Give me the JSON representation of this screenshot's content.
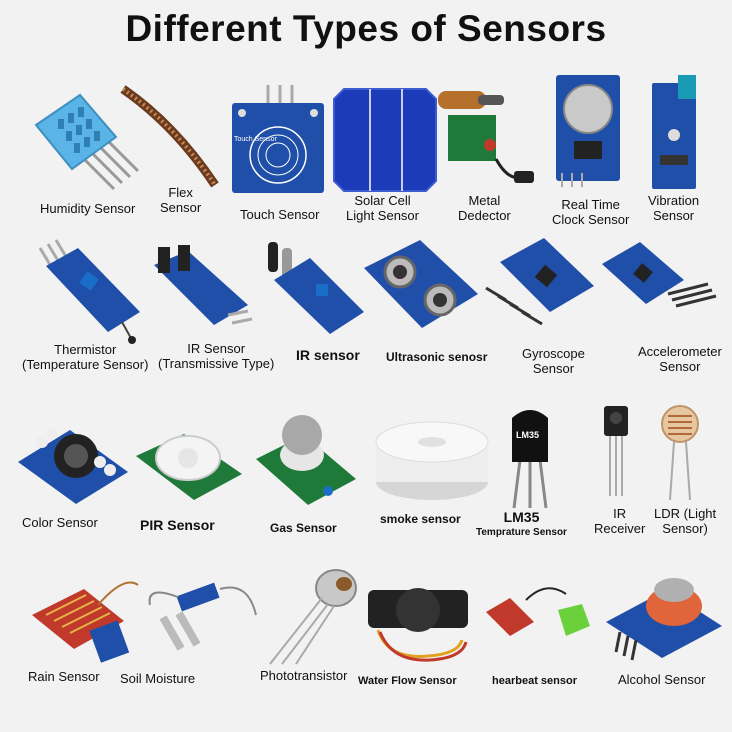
{
  "title": "Different Types of Sensors",
  "colors": {
    "pcb_blue": "#1f4fa8",
    "dht_blue": "#5ab4e6",
    "pcb_red": "#c0392b",
    "pcb_green": "#1f7a3a"
  },
  "sensors": [
    {
      "line1": "Humidity Sensor",
      "line2": "",
      "icon": "humidity-sensor-icon"
    },
    {
      "line1": "Flex",
      "line2": "Sensor",
      "icon": "flex-sensor-icon"
    },
    {
      "line1": "Touch Sensor",
      "line2": "",
      "icon": "touch-sensor-icon",
      "board_text": "Touch Sensor"
    },
    {
      "line1": "Solar Cell",
      "line2": "Light Sensor",
      "icon": "solar-cell-icon"
    },
    {
      "line1": "Metal",
      "line2": "Dedector",
      "icon": "metal-detector-icon"
    },
    {
      "line1": "Real Time",
      "line2": "Clock Sensor",
      "icon": "rtc-sensor-icon"
    },
    {
      "line1": "Vibration",
      "line2": "Sensor",
      "icon": "vibration-sensor-icon"
    },
    {
      "line1": "Thermistor",
      "line2": "(Temperature Sensor)",
      "icon": "thermistor-icon"
    },
    {
      "line1": "IR Sensor",
      "line2": "(Transmissive Type)",
      "icon": "ir-transmissive-icon"
    },
    {
      "line1": "IR sensor",
      "line2": "",
      "icon": "ir-sensor-icon"
    },
    {
      "line1": "Ultrasonic senosr",
      "line2": "",
      "icon": "ultrasonic-sensor-icon"
    },
    {
      "line1": "Gyroscope",
      "line2": "Sensor",
      "icon": "gyroscope-icon"
    },
    {
      "line1": "Accelerometer",
      "line2": "Sensor",
      "icon": "accelerometer-icon"
    },
    {
      "line1": "Color Sensor",
      "line2": "",
      "icon": "color-sensor-icon"
    },
    {
      "line1": "PIR Sensor",
      "line2": "",
      "icon": "pir-sensor-icon"
    },
    {
      "line1": "Gas Sensor",
      "line2": "",
      "icon": "gas-sensor-icon"
    },
    {
      "line1": "smoke sensor",
      "line2": "",
      "icon": "smoke-sensor-icon"
    },
    {
      "line1": "LM35",
      "line2": "Temprature Sensor",
      "icon": "lm35-icon",
      "chip_text": "LM35"
    },
    {
      "line1": "IR",
      "line2": "Receiver",
      "icon": "ir-receiver-icon"
    },
    {
      "line1": "LDR (Light",
      "line2": "Sensor)",
      "icon": "ldr-icon"
    },
    {
      "line1": "Rain Sensor",
      "line2": "",
      "icon": "rain-sensor-icon"
    },
    {
      "line1": "Soil Moisture",
      "line2": "",
      "icon": "soil-moisture-icon"
    },
    {
      "line1": "Phototransistor",
      "line2": "",
      "icon": "phototransistor-icon"
    },
    {
      "line1": "Water Flow Sensor",
      "line2": "",
      "icon": "water-flow-icon"
    },
    {
      "line1": "hearbeat sensor",
      "line2": "",
      "icon": "heartbeat-sensor-icon"
    },
    {
      "line1": "Alcohol Sensor",
      "line2": "",
      "icon": "alcohol-sensor-icon"
    }
  ]
}
